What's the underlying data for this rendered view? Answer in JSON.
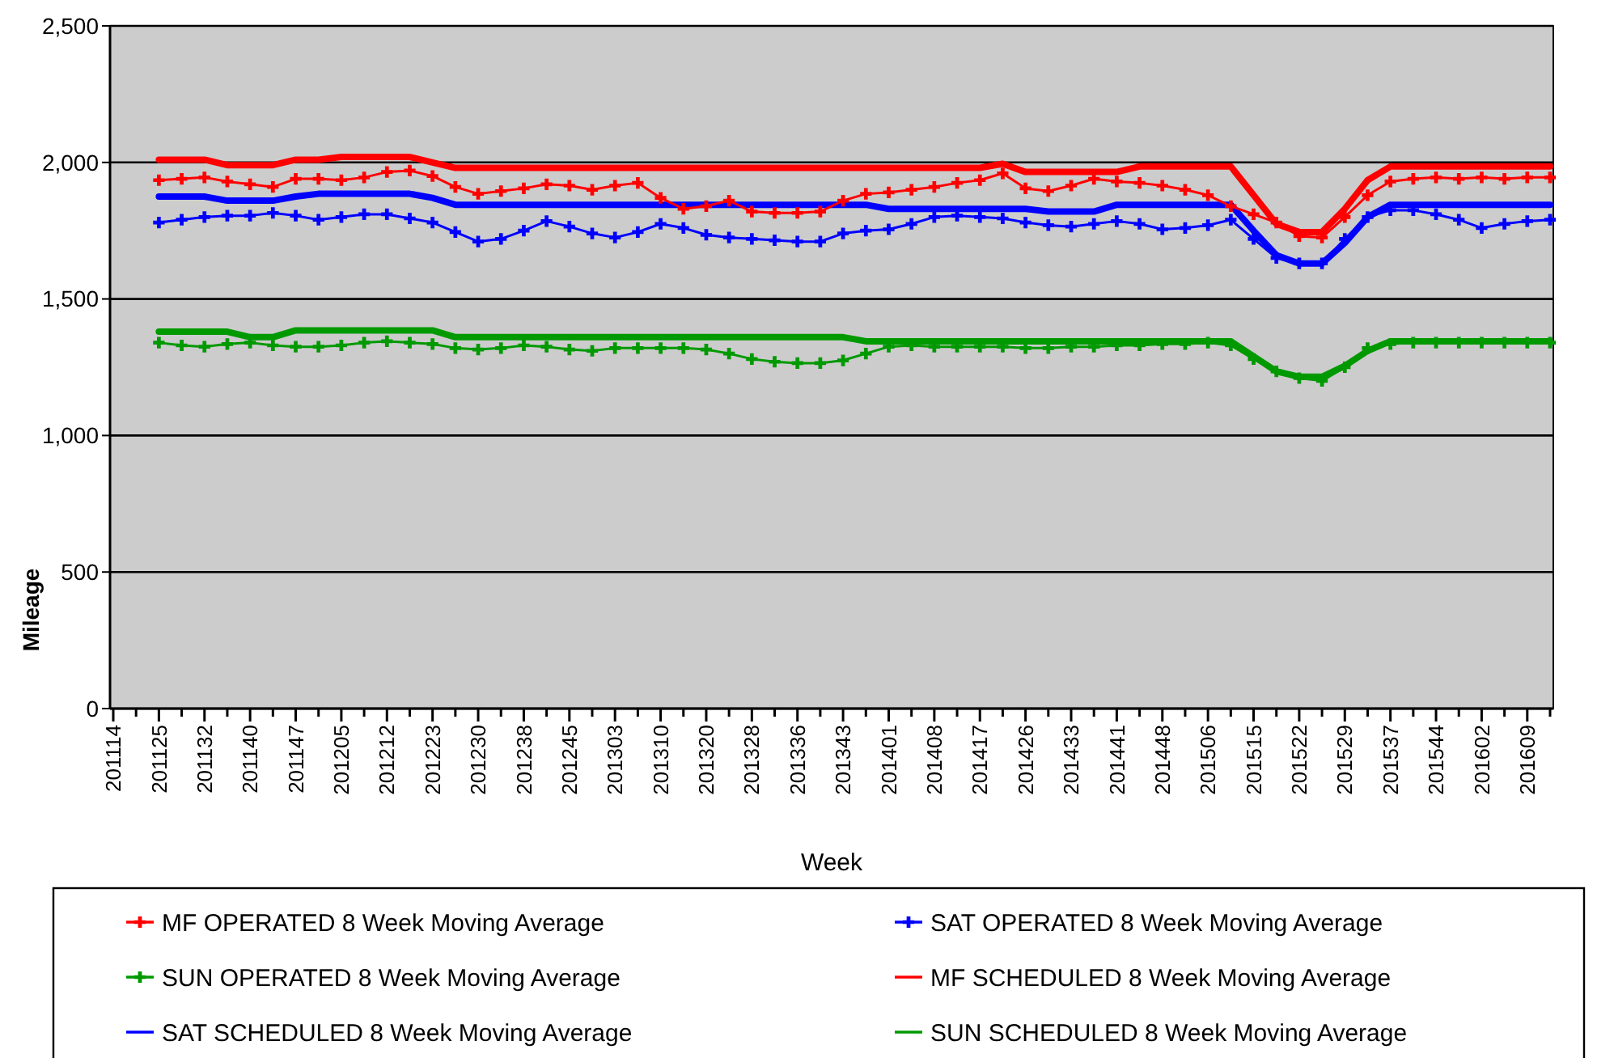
{
  "chart_data": {
    "type": "line",
    "xlabel": "Week",
    "ylabel": "Mileage",
    "categories": [
      "201114",
      null,
      "201125",
      null,
      "201132",
      null,
      "201140",
      null,
      "201147",
      null,
      "201205",
      null,
      "201212",
      null,
      "201223",
      null,
      "201230",
      null,
      "201238",
      null,
      "201245",
      null,
      "201303",
      null,
      "201310",
      null,
      "201320",
      null,
      "201328",
      null,
      "201336",
      null,
      "201343",
      null,
      "201401",
      null,
      "201408",
      null,
      "201417",
      null,
      "201426",
      null,
      "201433",
      null,
      "201441",
      null,
      "201448",
      null,
      "201506",
      null,
      "201515",
      null,
      "201522",
      null,
      "201529",
      null,
      "201537",
      null,
      "201544",
      null,
      "201602",
      null,
      "201609",
      null
    ],
    "ylim": [
      0,
      2500
    ],
    "yticks": [
      0,
      500,
      {
        "value": 1000,
        "label": "1,000"
      },
      {
        "value": 1500,
        "label": "1,500"
      },
      {
        "value": 2000,
        "label": "2,000"
      },
      {
        "value": 2500,
        "label": "2,500"
      }
    ],
    "grid": "y",
    "legend": "bottom",
    "line_style": "solid",
    "series": [
      {
        "name": "MF SCHEDULED 8 Week Moving Average",
        "color": "#ff0000",
        "marker": "none",
        "values": [
          null,
          null,
          2010,
          2010,
          2010,
          1990,
          1990,
          1990,
          2010,
          2010,
          2020,
          2020,
          2020,
          2020,
          2000,
          1980,
          1980,
          1980,
          1980,
          1980,
          1980,
          1980,
          1980,
          1980,
          1980,
          1980,
          1980,
          1980,
          1980,
          1980,
          1980,
          1980,
          1980,
          1980,
          1980,
          1980,
          1980,
          1980,
          1980,
          1995,
          1965,
          1965,
          1965,
          1965,
          1965,
          1985,
          1985,
          1985,
          1985,
          1985,
          1880,
          1775,
          1745,
          1745,
          1830,
          1935,
          1985,
          1985,
          1985,
          1985,
          1985,
          1985,
          1985,
          1985
        ]
      },
      {
        "name": "SAT SCHEDULED 8 Week Moving Average",
        "color": "#0000ff",
        "marker": "none",
        "values": [
          null,
          null,
          1875,
          1875,
          1875,
          1860,
          1860,
          1860,
          1875,
          1885,
          1885,
          1885,
          1885,
          1885,
          1870,
          1845,
          1845,
          1845,
          1845,
          1845,
          1845,
          1845,
          1845,
          1845,
          1845,
          1845,
          1845,
          1845,
          1845,
          1845,
          1845,
          1845,
          1845,
          1845,
          1830,
          1830,
          1830,
          1830,
          1830,
          1830,
          1830,
          1820,
          1820,
          1820,
          1845,
          1845,
          1845,
          1845,
          1845,
          1845,
          1750,
          1660,
          1630,
          1630,
          1705,
          1800,
          1845,
          1845,
          1845,
          1845,
          1845,
          1845,
          1845,
          1845
        ]
      },
      {
        "name": "SUN SCHEDULED 8 Week Moving Average",
        "color": "#009900",
        "marker": "none",
        "values": [
          null,
          null,
          1380,
          1380,
          1380,
          1380,
          1360,
          1360,
          1385,
          1385,
          1385,
          1385,
          1385,
          1385,
          1385,
          1360,
          1360,
          1360,
          1360,
          1360,
          1360,
          1360,
          1360,
          1360,
          1360,
          1360,
          1360,
          1360,
          1360,
          1360,
          1360,
          1360,
          1360,
          1345,
          1345,
          1345,
          1345,
          1345,
          1345,
          1345,
          1345,
          1345,
          1345,
          1345,
          1345,
          1345,
          1345,
          1345,
          1345,
          1345,
          1290,
          1235,
          1215,
          1215,
          1255,
          1310,
          1345,
          1345,
          1345,
          1345,
          1345,
          1345,
          1345,
          1345
        ]
      },
      {
        "name": "MF OPERATED 8 Week Moving Average",
        "color": "#ff0000",
        "marker": "cross",
        "values": [
          null,
          null,
          1935,
          1940,
          1945,
          1930,
          1920,
          1910,
          1940,
          1940,
          1935,
          1945,
          1965,
          1970,
          1950,
          1910,
          1885,
          1895,
          1905,
          1920,
          1915,
          1900,
          1915,
          1925,
          1870,
          1830,
          1840,
          1860,
          1820,
          1815,
          1815,
          1820,
          1860,
          1885,
          1890,
          1900,
          1910,
          1925,
          1935,
          1960,
          1905,
          1895,
          1915,
          1940,
          1930,
          1925,
          1915,
          1900,
          1880,
          1840,
          1810,
          1780,
          1730,
          1725,
          1800,
          1880,
          1930,
          1940,
          1945,
          1940,
          1945,
          1940,
          1945,
          1945
        ]
      },
      {
        "name": "SAT OPERATED 8 Week Moving Average",
        "color": "#0000ff",
        "marker": "cross",
        "values": [
          null,
          null,
          1780,
          1790,
          1800,
          1805,
          1805,
          1815,
          1805,
          1790,
          1800,
          1810,
          1810,
          1795,
          1780,
          1745,
          1710,
          1720,
          1750,
          1785,
          1765,
          1740,
          1725,
          1745,
          1775,
          1760,
          1735,
          1725,
          1720,
          1715,
          1710,
          1710,
          1740,
          1750,
          1755,
          1775,
          1800,
          1805,
          1800,
          1795,
          1780,
          1770,
          1765,
          1775,
          1785,
          1775,
          1755,
          1760,
          1770,
          1790,
          1720,
          1650,
          1630,
          1630,
          1720,
          1800,
          1825,
          1825,
          1810,
          1790,
          1760,
          1775,
          1785,
          1790
        ]
      },
      {
        "name": "SUN OPERATED 8 Week Moving Average",
        "color": "#009900",
        "marker": "cross",
        "values": [
          null,
          null,
          1340,
          1330,
          1325,
          1335,
          1340,
          1330,
          1325,
          1325,
          1330,
          1340,
          1345,
          1340,
          1335,
          1320,
          1315,
          1320,
          1330,
          1325,
          1315,
          1310,
          1320,
          1320,
          1320,
          1320,
          1315,
          1300,
          1280,
          1270,
          1265,
          1265,
          1275,
          1300,
          1325,
          1330,
          1325,
          1325,
          1325,
          1325,
          1320,
          1320,
          1325,
          1325,
          1330,
          1330,
          1335,
          1335,
          1340,
          1330,
          1280,
          1235,
          1210,
          1200,
          1250,
          1320,
          1335,
          1340,
          1340,
          1340,
          1340,
          1340,
          1340,
          1340
        ]
      }
    ]
  }
}
